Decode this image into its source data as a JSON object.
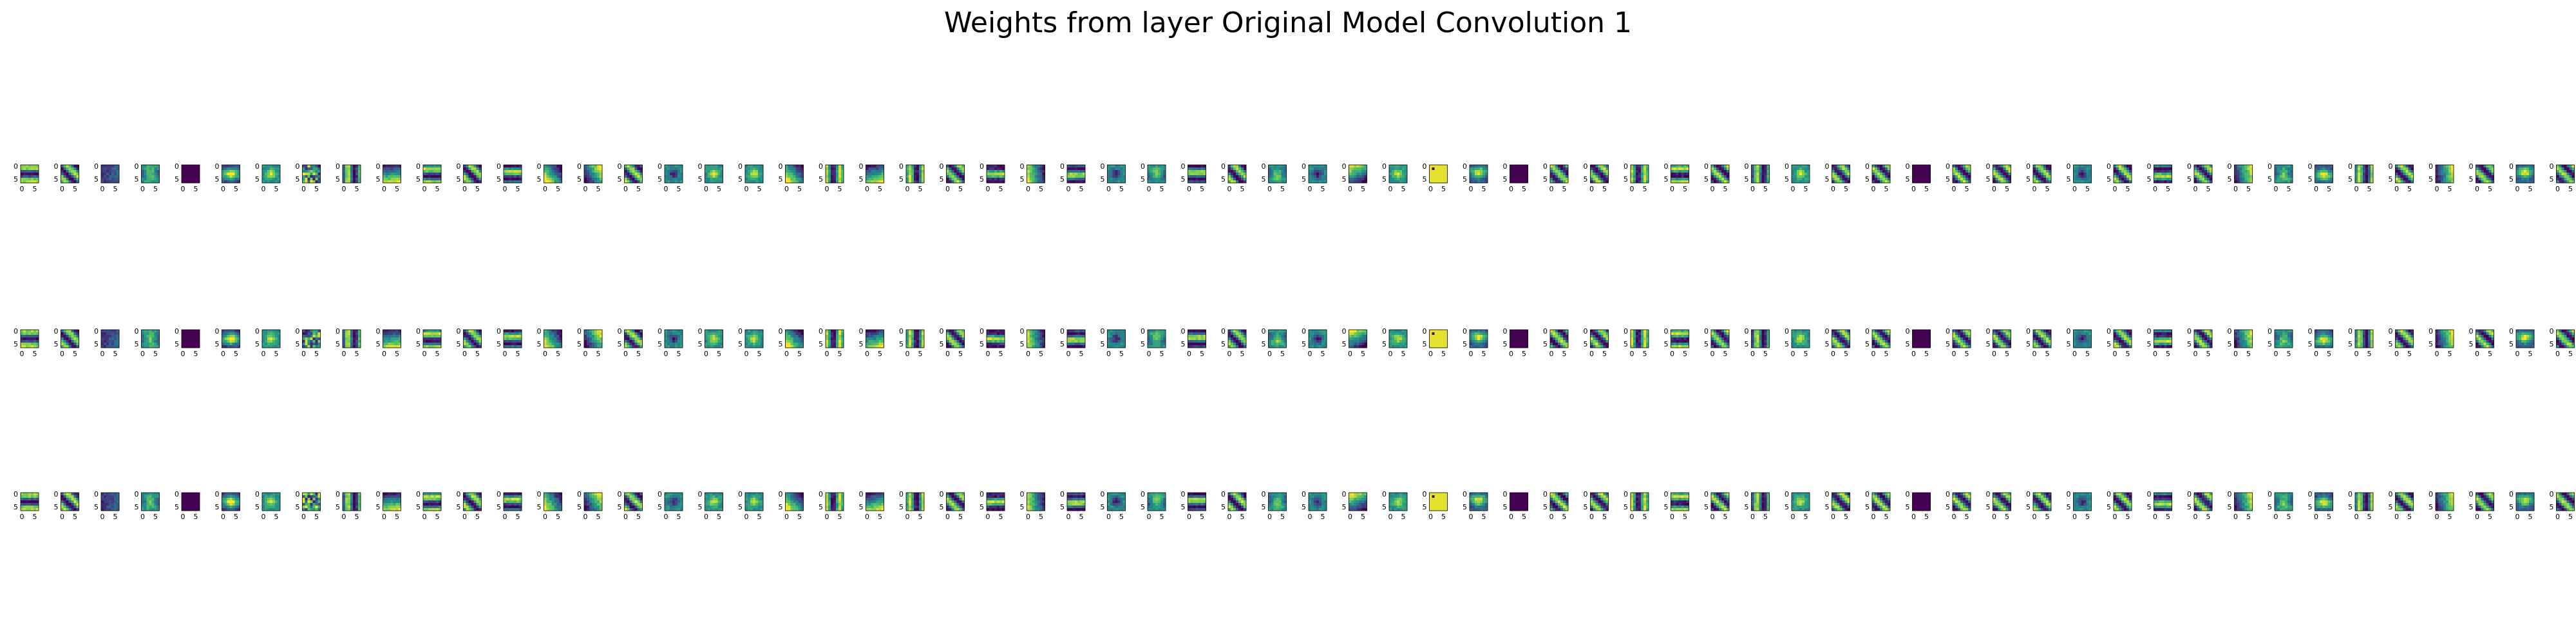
{
  "chart_data": {
    "type": "heatmap",
    "title": "Weights from layer Original Model Convolution 1",
    "grid": false,
    "colormap": "viridis",
    "colormap_stops": [
      "#440154",
      "#3b528b",
      "#21918c",
      "#5ec962",
      "#fde725"
    ],
    "tick_labels": {
      "x": [
        "0",
        "5"
      ],
      "y": [
        "0",
        "5"
      ]
    },
    "layout": {
      "rows": 3,
      "columns": 64
    },
    "channels": [
      "0",
      "1",
      "2"
    ],
    "kernel_size": 7,
    "kernel_patterns": [
      "hbar",
      "diag",
      "dark",
      "blob",
      "uni0",
      "blob",
      "spot",
      "noise",
      "vbar",
      "grad",
      "hbar",
      "diag",
      "hbar",
      "grad",
      "grad",
      "diag",
      "spot",
      "spot",
      "spot",
      "grad",
      "vbar",
      "grad",
      "vbar",
      "diag",
      "hbar",
      "grad",
      "hbar",
      "spot",
      "blob",
      "hbar",
      "diag",
      "blob",
      "spot",
      "grad",
      "spot",
      "uni1",
      "blob",
      "uni0",
      "diag",
      "diag",
      "vbar",
      "hbar",
      "diag",
      "vbar",
      "spot",
      "diag",
      "diag",
      "uni0",
      "diag",
      "diag",
      "diag",
      "spot",
      "diag",
      "hbar",
      "diag",
      "grad",
      "blob",
      "blob",
      "vbar",
      "diag",
      "grad",
      "diag",
      "blob",
      "diag"
    ]
  }
}
